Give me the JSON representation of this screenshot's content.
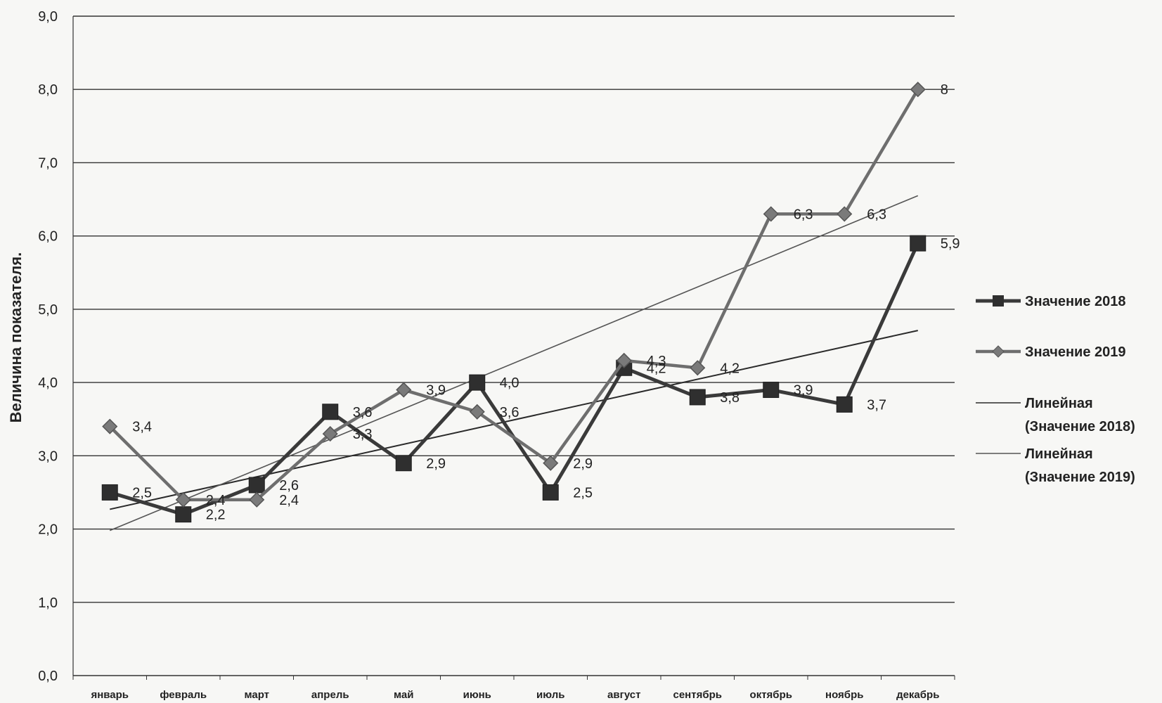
{
  "chart_data": {
    "type": "line",
    "title": "",
    "ylabel": "Величина показателя.",
    "xlabel": "",
    "ylim": [
      0,
      9
    ],
    "yticks": [
      "0,0",
      "1,0",
      "2,0",
      "3,0",
      "4,0",
      "5,0",
      "6,0",
      "7,0",
      "8,0",
      "9,0"
    ],
    "categories": [
      "январь",
      "февраль",
      "март",
      "апрель",
      "май",
      "июнь",
      "июль",
      "август",
      "сентябрь",
      "октябрь",
      "ноябрь",
      "декабрь"
    ],
    "grid": true,
    "legend_position": "right",
    "series": [
      {
        "name": "Значение 2018",
        "values": [
          2.5,
          2.2,
          2.6,
          3.6,
          2.9,
          4.0,
          2.5,
          4.2,
          3.8,
          3.9,
          3.7,
          5.9
        ],
        "labels": [
          "2,5",
          "2,2",
          "2,6",
          "3,6",
          "2,9",
          "4,0",
          "2,5",
          "4,2",
          "3,8",
          "3,9",
          "3,7",
          "5,9"
        ],
        "marker": "square",
        "color": "#3a3a3a"
      },
      {
        "name": "Значение 2019",
        "values": [
          3.4,
          2.4,
          2.4,
          3.3,
          3.9,
          3.6,
          2.9,
          4.3,
          4.2,
          6.3,
          6.3,
          8.0
        ],
        "labels": [
          "3,4",
          "2,4",
          "2,4",
          "3,3",
          "3,9",
          "3,6",
          "2,9",
          "4,3",
          "4,2",
          "6,3",
          "6,3",
          "8"
        ],
        "marker": "diamond",
        "color": "#6e6e6e"
      }
    ],
    "trendlines": [
      {
        "name": "Линейная (Значение 2018)",
        "legend_lines": [
          "Линейная",
          "(Значение 2018)"
        ],
        "start": 2.27,
        "end": 4.71,
        "color": "#2a2a2a"
      },
      {
        "name": "Линейная (Значение 2019)",
        "legend_lines": [
          "Линейная",
          "(Значение 2019)"
        ],
        "start": 1.98,
        "end": 6.55,
        "color": "#555555"
      }
    ]
  }
}
